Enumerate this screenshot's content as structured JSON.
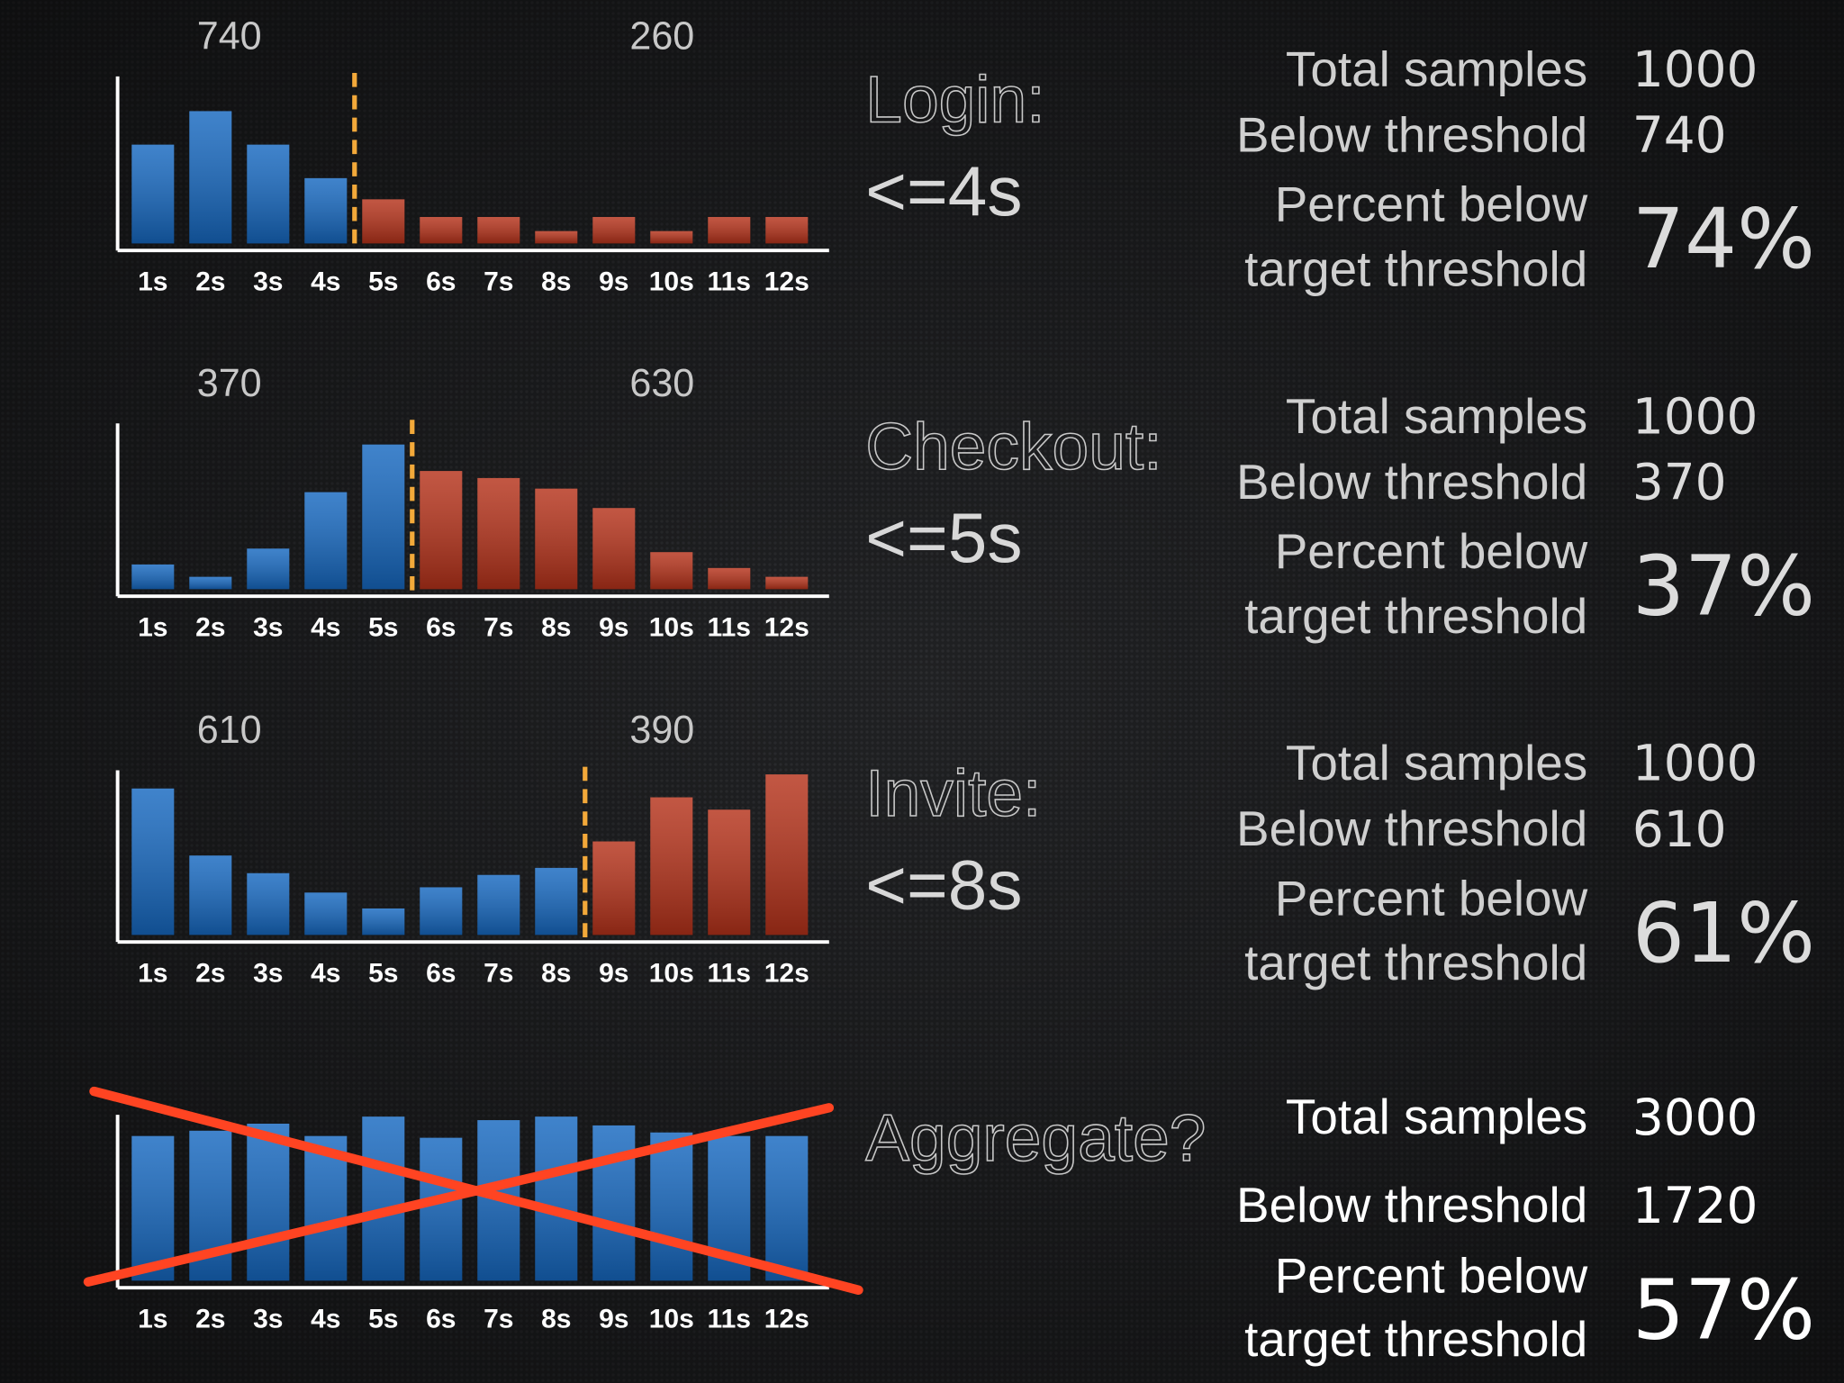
{
  "chart_data": [
    {
      "type": "bar",
      "title": "Login:",
      "subtitle": "<=4s",
      "annotations": [
        740,
        260
      ],
      "categories": [
        "1s",
        "2s",
        "3s",
        "4s",
        "5s",
        "6s",
        "7s",
        "8s",
        "9s",
        "10s",
        "11s",
        "12s"
      ],
      "values": [
        56,
        75,
        56,
        37,
        25,
        15,
        15,
        7,
        15,
        7,
        15,
        15
      ],
      "colors": [
        "#1668c0",
        "#1668c0",
        "#1668c0",
        "#1668c0",
        "#b5321a",
        "#b5321a",
        "#b5321a",
        "#b5321a",
        "#b5321a",
        "#b5321a",
        "#b5321a",
        "#b5321a"
      ],
      "ylim": [
        0,
        100
      ],
      "stats": {
        "total_label": "Total samples",
        "total": 1000,
        "below_label": "Below threshold",
        "below": 740,
        "percent_label_1": "Percent below",
        "percent_label_2": "target threshold",
        "percent": 74,
        "percent_label": "74%"
      }
    },
    {
      "type": "bar",
      "title": "Checkout:",
      "subtitle": "<=5s",
      "annotations": [
        370,
        630
      ],
      "categories": [
        "1s",
        "2s",
        "3s",
        "4s",
        "5s",
        "6s",
        "7s",
        "8s",
        "9s",
        "10s",
        "11s",
        "12s"
      ],
      "values": [
        14,
        7,
        23,
        55,
        82,
        67,
        63,
        57,
        46,
        21,
        12,
        7
      ],
      "colors": [
        "#1668c0",
        "#1668c0",
        "#1668c0",
        "#1668c0",
        "#1668c0",
        "#b5321a",
        "#b5321a",
        "#b5321a",
        "#b5321a",
        "#b5321a",
        "#b5321a",
        "#b5321a"
      ],
      "ylim": [
        0,
        100
      ],
      "stats": {
        "total_label": "Total samples",
        "total": 1000,
        "below_label": "Below threshold",
        "below": 370,
        "percent_label_1": "Percent below",
        "percent_label_2": "target threshold",
        "percent": 37,
        "percent_label": "37%"
      }
    },
    {
      "type": "bar",
      "title": "Invite:",
      "subtitle": "<=8s",
      "annotations": [
        610,
        390
      ],
      "categories": [
        "1s",
        "2s",
        "3s",
        "4s",
        "5s",
        "6s",
        "7s",
        "8s",
        "9s",
        "10s",
        "11s",
        "12s"
      ],
      "values": [
        83,
        45,
        35,
        24,
        15,
        27,
        34,
        38,
        53,
        78,
        71,
        91
      ],
      "colors": [
        "#1668c0",
        "#1668c0",
        "#1668c0",
        "#1668c0",
        "#1668c0",
        "#1668c0",
        "#1668c0",
        "#1668c0",
        "#b5321a",
        "#b5321a",
        "#b5321a",
        "#b5321a"
      ],
      "ylim": [
        0,
        100
      ],
      "stats": {
        "total_label": "Total samples",
        "total": 1000,
        "below_label": "Below threshold",
        "below": 610,
        "percent_label_1": "Percent below",
        "percent_label_2": "target threshold",
        "percent": 61,
        "percent_label": "61%"
      }
    },
    {
      "type": "bar",
      "title": "Aggregate?",
      "categories": [
        "1s",
        "2s",
        "3s",
        "4s",
        "5s",
        "6s",
        "7s",
        "8s",
        "9s",
        "10s",
        "11s",
        "12s"
      ],
      "values": [
        82,
        85,
        89,
        82,
        93,
        81,
        91,
        93,
        88,
        84,
        82,
        82
      ],
      "colors": [
        "#1668c0",
        "#1668c0",
        "#1668c0",
        "#1668c0",
        "#1668c0",
        "#1668c0",
        "#1668c0",
        "#1668c0",
        "#1668c0",
        "#1668c0",
        "#1668c0",
        "#1668c0"
      ],
      "ylim": [
        0,
        100
      ],
      "stats": {
        "total_label": "Total samples",
        "total": 3000,
        "below_label": "Below threshold",
        "below": 1720,
        "percent_label_1": "Percent below",
        "percent_label_2": "target threshold",
        "percent": 57,
        "percent_label": "57%"
      }
    }
  ]
}
